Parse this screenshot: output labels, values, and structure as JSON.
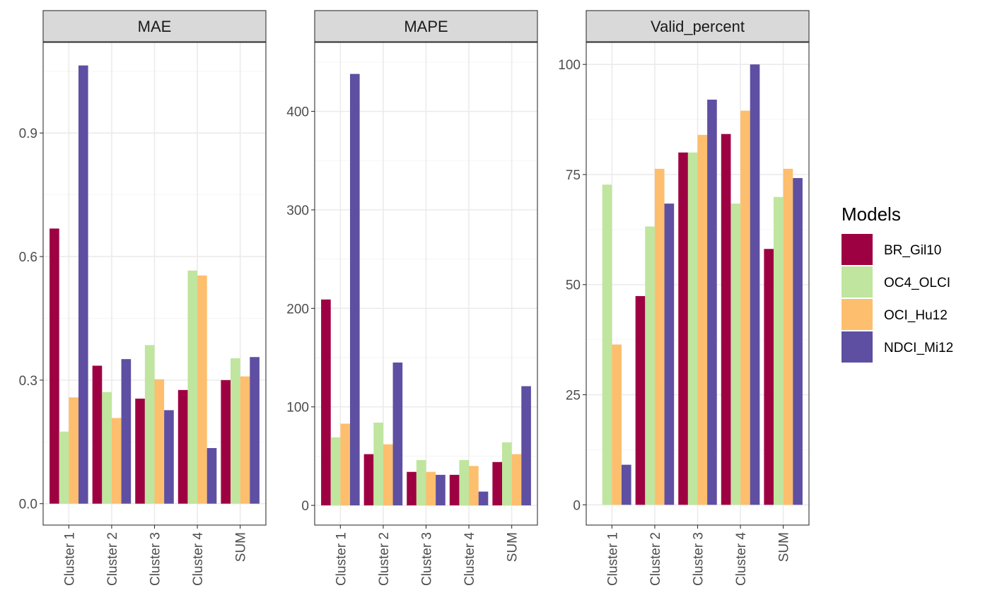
{
  "chart_data": {
    "type": "bar",
    "categories": [
      "Cluster 1",
      "Cluster 2",
      "Cluster 3",
      "Cluster 4",
      "SUM"
    ],
    "legend": {
      "title": "Models",
      "position": "right",
      "items": [
        {
          "name": "BR_Gil10",
          "color": "#9e0142"
        },
        {
          "name": "OC4_OLCI",
          "color": "#bfe59e"
        },
        {
          "name": "OCI_Hu12",
          "color": "#fdbe6e"
        },
        {
          "name": "NDCI_Mi12",
          "color": "#5e4fa2"
        }
      ]
    },
    "grid": true,
    "panels": [
      {
        "title": "MAE",
        "ylim": [
          -0.052,
          1.12
        ],
        "yticks": [
          0.0,
          0.3,
          0.6,
          0.9
        ],
        "ytick_labels": [
          "0.0",
          "0.3",
          "0.6",
          "0.9"
        ],
        "series": [
          {
            "name": "BR_Gil10",
            "values": [
              0.668,
              0.335,
              0.255,
              0.276,
              0.3
            ]
          },
          {
            "name": "OC4_OLCI",
            "values": [
              0.175,
              0.271,
              0.385,
              0.566,
              0.353
            ]
          },
          {
            "name": "OCI_Hu12",
            "values": [
              0.258,
              0.208,
              0.302,
              0.554,
              0.309
            ]
          },
          {
            "name": "NDCI_Mi12",
            "values": [
              1.064,
              0.351,
              0.227,
              0.135,
              0.356
            ]
          }
        ]
      },
      {
        "title": "MAPE",
        "ylim": [
          -20,
          470
        ],
        "yticks": [
          0,
          100,
          200,
          300,
          400
        ],
        "ytick_labels": [
          "0",
          "100",
          "200",
          "300",
          "400"
        ],
        "series": [
          {
            "name": "BR_Gil10",
            "values": [
              209,
              52,
              34,
              31,
              44
            ]
          },
          {
            "name": "OC4_OLCI",
            "values": [
              69,
              84,
              46,
              46,
              64
            ]
          },
          {
            "name": "OCI_Hu12",
            "values": [
              83,
              62,
              34,
              40,
              52
            ]
          },
          {
            "name": "NDCI_Mi12",
            "values": [
              438,
              145,
              31,
              14,
              121
            ]
          }
        ]
      },
      {
        "title": "Valid_percent",
        "ylim": [
          -4.6,
          105
        ],
        "yticks": [
          0,
          25,
          50,
          75,
          100
        ],
        "ytick_labels": [
          "0",
          "25",
          "50",
          "75",
          "100"
        ],
        "series": [
          {
            "name": "BR_Gil10",
            "values": [
              0,
              47.4,
              80.0,
              84.2,
              58.1
            ]
          },
          {
            "name": "OC4_OLCI",
            "values": [
              72.7,
              63.2,
              80.0,
              68.4,
              69.9
            ]
          },
          {
            "name": "OCI_Hu12",
            "values": [
              36.4,
              76.3,
              84.0,
              89.5,
              76.3
            ]
          },
          {
            "name": "NDCI_Mi12",
            "values": [
              9.1,
              68.4,
              92.0,
              100.0,
              74.2
            ]
          }
        ]
      }
    ]
  }
}
